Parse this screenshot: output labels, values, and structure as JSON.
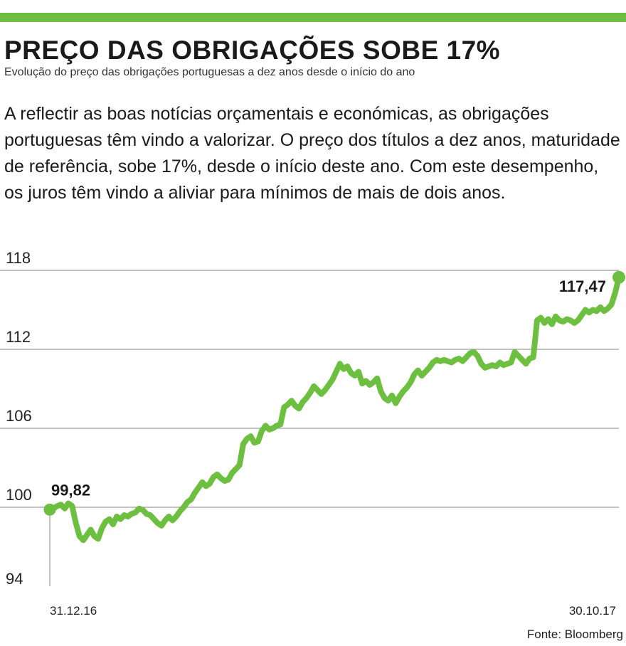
{
  "header": {
    "title": "PREÇO DAS OBRIGAÇÕES SOBE 17%",
    "subtitle": "Evolução do preço das obrigações portuguesas a dez anos desde o início do ano",
    "description": "A reflectir as boas notícias orçamentais e económicas, as obrigações portuguesas têm vindo a valorizar. O preço dos títulos a dez anos, maturidade de referência, sobe 17%, desde o início deste ano. Com este desempenho, os juros têm vindo a aliviar para mínimos de mais de dois anos."
  },
  "source": "Fonte: Bloomberg",
  "colors": {
    "accent": "#6cbf3f",
    "line": "#6cbf3f",
    "grid": "#9a9a9a",
    "text": "#1a1a1a"
  },
  "chart_data": {
    "type": "line",
    "title": "PREÇO DAS OBRIGAÇÕES SOBE 17%",
    "xlabel": "",
    "ylabel": "",
    "ylim": [
      94,
      118
    ],
    "yticks": [
      "94",
      "100",
      "106",
      "112",
      "118"
    ],
    "grid": true,
    "x_start_label": "31.12.16",
    "x_end_label": "30.10.17",
    "annotations": [
      {
        "label": "99,82",
        "point": "first"
      },
      {
        "label": "117,47",
        "point": "last"
      }
    ],
    "series": [
      {
        "values": [
          99.82,
          99.9,
          100.1,
          100.2,
          99.9,
          100.3,
          100.1,
          98.8,
          97.8,
          97.5,
          97.9,
          98.3,
          97.8,
          97.6,
          98.4,
          98.9,
          99.1,
          98.7,
          99.3,
          99.1,
          99.4,
          99.3,
          99.5,
          99.6,
          99.9,
          99.8,
          99.5,
          99.4,
          99.1,
          98.8,
          98.6,
          99.0,
          99.3,
          99.0,
          99.3,
          99.7,
          100.0,
          100.4,
          100.6,
          101.1,
          101.5,
          101.9,
          101.6,
          101.8,
          102.3,
          102.5,
          102.2,
          102.0,
          102.1,
          102.6,
          102.9,
          103.2,
          104.8,
          105.2,
          105.4,
          104.9,
          105.0,
          105.8,
          106.2,
          105.9,
          106.0,
          106.2,
          106.3,
          107.6,
          107.8,
          108.1,
          107.7,
          107.5,
          108.0,
          108.3,
          108.7,
          109.2,
          108.9,
          108.6,
          108.9,
          109.3,
          109.7,
          110.3,
          110.9,
          110.5,
          110.7,
          110.2,
          110.0,
          110.3,
          109.4,
          109.6,
          109.3,
          109.5,
          109.8,
          108.8,
          108.3,
          108.1,
          108.5,
          107.9,
          108.4,
          108.8,
          109.1,
          109.5,
          110.1,
          110.4,
          110.0,
          110.3,
          110.6,
          111.0,
          111.2,
          111.1,
          111.2,
          111.1,
          111.0,
          111.2,
          111.3,
          111.1,
          111.4,
          111.7,
          111.8,
          111.5,
          110.9,
          110.6,
          110.7,
          110.8,
          110.7,
          111.0,
          110.8,
          110.9,
          111.0,
          111.8,
          111.5,
          111.2,
          110.9,
          111.3,
          111.4,
          114.2,
          114.4,
          114.0,
          114.3,
          113.9,
          114.5,
          114.2,
          114.1,
          114.3,
          114.2,
          114.0,
          114.2,
          114.6,
          115.0,
          114.8,
          115.0,
          114.9,
          115.2,
          114.9,
          115.1,
          115.4,
          116.3,
          117.47
        ]
      }
    ]
  }
}
